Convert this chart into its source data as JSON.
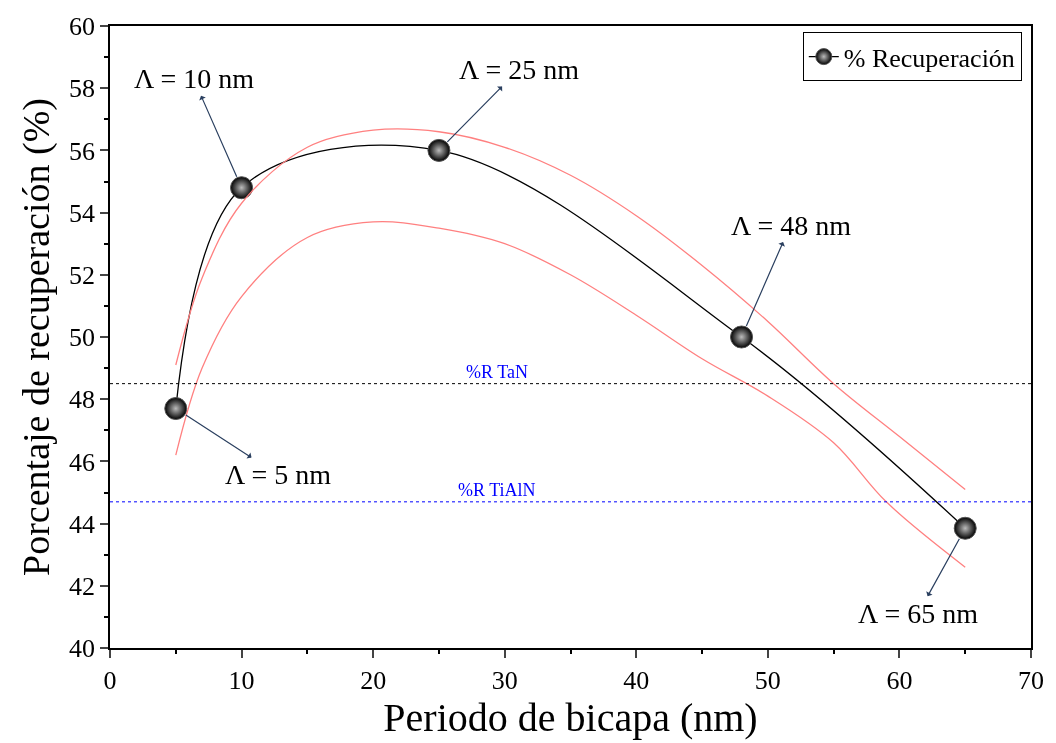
{
  "chart_data": {
    "type": "line",
    "xlabel": "Periodo de bicapa (nm)",
    "ylabel": "Porcentaje de recuperación (%)",
    "xlim": [
      0,
      70
    ],
    "xticks": [
      0,
      10,
      20,
      30,
      40,
      50,
      60,
      70
    ],
    "ylim": [
      40,
      60
    ],
    "yticks": [
      40,
      42,
      44,
      46,
      48,
      50,
      52,
      54,
      56,
      58,
      60
    ],
    "legend": "top right",
    "series": [
      {
        "name": "% Recuperación",
        "color": "#000000",
        "marker": "circle",
        "x": [
          5,
          10,
          25,
          48,
          65
        ],
        "values": [
          47.7,
          54.8,
          56.0,
          50.0,
          43.85
        ]
      },
      {
        "color": "#ff8080",
        "marker": "none",
        "x": [
          5,
          7,
          10,
          15,
          20,
          25,
          30,
          35,
          40,
          45,
          50,
          55,
          60,
          65
        ],
        "values": [
          49.1,
          51.9,
          54.3,
          56.1,
          56.65,
          56.6,
          56.1,
          55.2,
          53.9,
          52.3,
          50.5,
          48.5,
          46.8,
          45.1
        ]
      },
      {
        "color": "#ff8080",
        "marker": "none",
        "x": [
          5,
          7,
          10,
          15,
          20,
          25,
          30,
          35,
          40,
          45,
          50,
          55,
          59,
          65
        ],
        "values": [
          46.2,
          49.0,
          51.3,
          53.2,
          53.7,
          53.5,
          53.0,
          52.0,
          50.7,
          49.3,
          48.1,
          46.6,
          44.7,
          42.6
        ]
      }
    ],
    "ref_lines": [
      {
        "axis": "y",
        "value": 48.5,
        "label": "%R TaN",
        "color": "#000000",
        "line_style": "dotted"
      },
      {
        "axis": "y",
        "value": 44.7,
        "label": "%R TiAlN",
        "color": "#0000ff",
        "line_style": "dotted"
      }
    ],
    "annotations": [
      {
        "text": "Λ = 10 nm",
        "x": 10,
        "y": 54.8
      },
      {
        "text": "Λ = 25 nm",
        "x": 25,
        "y": 56.0
      },
      {
        "text": "Λ = 48 nm",
        "x": 48,
        "y": 50.0
      },
      {
        "text": "Λ = 5 nm",
        "x": 5,
        "y": 47.7
      },
      {
        "text": "Λ = 65 nm",
        "x": 65,
        "y": 43.85
      }
    ]
  }
}
